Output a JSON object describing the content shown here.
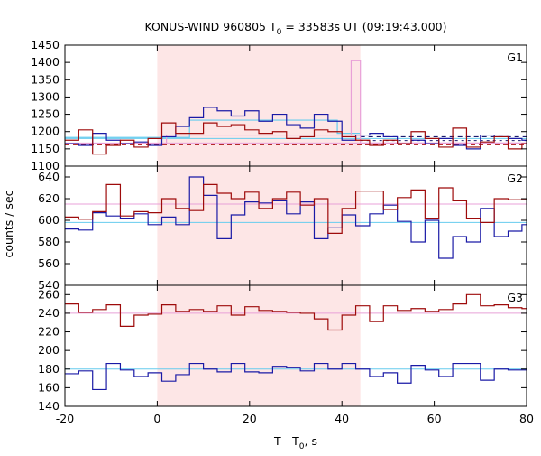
{
  "colors": {
    "blue": "#1a1aa6",
    "red": "#9e0b0b",
    "cyan": "#66ccee",
    "pink": "#e8a0d8",
    "shade": "#fde6e6",
    "dash_blue": "#1a1a6e",
    "dash_red": "#aa1111"
  },
  "chart_data": {
    "type": "line",
    "title": "KONUS-WIND 960805 T",
    "title_sub": "0",
    "title_rest": " = 33583s UT (09:19:43.000)",
    "xlabel": "T - T",
    "xlabel_sub": "0",
    "xlabel_rest": ", s",
    "ylabel": "counts / sec",
    "xlim": [
      -20,
      80
    ],
    "x_ticks": [
      -20,
      0,
      20,
      40,
      60,
      80
    ],
    "grid": false,
    "highlight_interval": [
      0,
      44
    ],
    "panels": [
      {
        "label": "G1",
        "ylim": [
          1100,
          1450
        ],
        "y_ticks": [
          1100,
          1150,
          1200,
          1250,
          1300,
          1350,
          1400,
          1450
        ],
        "blue": {
          "edges": [
            -20,
            -17,
            -14,
            -11,
            -8,
            -5,
            -2,
            1,
            4,
            7,
            10,
            13,
            16,
            19,
            22,
            25,
            28,
            31,
            34,
            37,
            40,
            43,
            46,
            49,
            52,
            55,
            58,
            61,
            64,
            67,
            70,
            73,
            76,
            79,
            80
          ],
          "values": [
            1165,
            1160,
            1195,
            1175,
            1165,
            1170,
            1160,
            1185,
            1215,
            1240,
            1270,
            1260,
            1245,
            1260,
            1230,
            1250,
            1220,
            1210,
            1250,
            1230,
            1175,
            1190,
            1195,
            1185,
            1165,
            1175,
            1165,
            1180,
            1160,
            1150,
            1190,
            1185,
            1180,
            1175
          ]
        },
        "red": {
          "edges": [
            -20,
            -17,
            -14,
            -11,
            -8,
            -5,
            -2,
            1,
            4,
            7,
            10,
            13,
            16,
            19,
            22,
            25,
            28,
            31,
            34,
            37,
            40,
            43,
            46,
            49,
            52,
            55,
            58,
            61,
            64,
            67,
            70,
            73,
            76,
            79,
            80
          ],
          "values": [
            1175,
            1205,
            1135,
            1160,
            1175,
            1155,
            1180,
            1225,
            1195,
            1195,
            1225,
            1215,
            1220,
            1205,
            1195,
            1200,
            1180,
            1185,
            1205,
            1200,
            1185,
            1175,
            1160,
            1175,
            1165,
            1200,
            1180,
            1155,
            1210,
            1155,
            1170,
            1185,
            1150,
            1165
          ]
        },
        "blue_bg": 1180,
        "red_bg": 1167,
        "blue_dash": 1185,
        "red_dash": 1162,
        "blue_dash2": 1174,
        "cyan_fit": {
          "edges": [
            -20,
            7,
            39,
            44
          ],
          "values": [
            1183,
            1233,
            1195
          ]
        },
        "pink_fit": {
          "edges": [
            -20,
            2,
            42,
            44,
            80
          ],
          "values": [
            1165,
            1190,
            1405,
            1167
          ]
        }
      },
      {
        "label": "G2",
        "ylim": [
          540,
          650
        ],
        "y_ticks": [
          540,
          560,
          580,
          600,
          620,
          640
        ],
        "blue": {
          "edges": [
            -20,
            -17,
            -14,
            -11,
            -8,
            -5,
            -2,
            1,
            4,
            7,
            10,
            13,
            16,
            19,
            22,
            25,
            28,
            31,
            34,
            37,
            40,
            43,
            46,
            49,
            52,
            55,
            58,
            61,
            64,
            67,
            70,
            73,
            76,
            79,
            80
          ],
          "values": [
            592,
            591,
            607,
            604,
            602,
            606,
            596,
            603,
            596,
            640,
            623,
            583,
            605,
            617,
            616,
            618,
            606,
            617,
            583,
            593,
            605,
            595,
            606,
            614,
            599,
            580,
            600,
            565,
            585,
            580,
            611,
            585,
            590,
            596
          ]
        },
        "red": {
          "edges": [
            -20,
            -17,
            -14,
            -11,
            -8,
            -5,
            -2,
            1,
            4,
            7,
            10,
            13,
            16,
            19,
            22,
            25,
            28,
            31,
            34,
            37,
            40,
            43,
            46,
            49,
            52,
            55,
            58,
            61,
            64,
            67,
            70,
            73,
            76,
            79,
            80
          ],
          "values": [
            603,
            601,
            608,
            633,
            604,
            608,
            607,
            620,
            611,
            609,
            633,
            625,
            620,
            626,
            611,
            620,
            626,
            614,
            620,
            588,
            611,
            627,
            627,
            610,
            621,
            628,
            602,
            630,
            618,
            602,
            598,
            620,
            619,
            619
          ]
        },
        "blue_bg": 598,
        "red_bg": 615
      },
      {
        "label": "G3",
        "ylim": [
          140,
          270
        ],
        "y_ticks": [
          140,
          160,
          180,
          200,
          220,
          240,
          260
        ],
        "blue": {
          "edges": [
            -20,
            -17,
            -14,
            -11,
            -8,
            -5,
            -2,
            1,
            4,
            7,
            10,
            13,
            16,
            19,
            22,
            25,
            28,
            31,
            34,
            37,
            40,
            43,
            46,
            49,
            52,
            55,
            58,
            61,
            64,
            67,
            70,
            73,
            76,
            79,
            80
          ],
          "values": [
            175,
            178,
            158,
            186,
            179,
            172,
            176,
            167,
            174,
            186,
            180,
            177,
            186,
            177,
            176,
            183,
            182,
            178,
            186,
            180,
            186,
            180,
            172,
            176,
            165,
            184,
            179,
            172,
            186,
            186,
            168,
            180,
            179,
            179
          ]
        },
        "red": {
          "edges": [
            -20,
            -17,
            -14,
            -11,
            -8,
            -5,
            -2,
            1,
            4,
            7,
            10,
            13,
            16,
            19,
            22,
            25,
            28,
            31,
            34,
            37,
            40,
            43,
            46,
            49,
            52,
            55,
            58,
            61,
            64,
            67,
            70,
            73,
            76,
            79,
            80
          ],
          "values": [
            250,
            241,
            244,
            249,
            226,
            238,
            239,
            249,
            242,
            244,
            242,
            248,
            238,
            247,
            243,
            242,
            241,
            240,
            234,
            222,
            238,
            248,
            231,
            248,
            243,
            245,
            242,
            244,
            250,
            260,
            248,
            249,
            246,
            245
          ]
        },
        "blue_bg": 180,
        "red_bg": 240
      }
    ]
  }
}
